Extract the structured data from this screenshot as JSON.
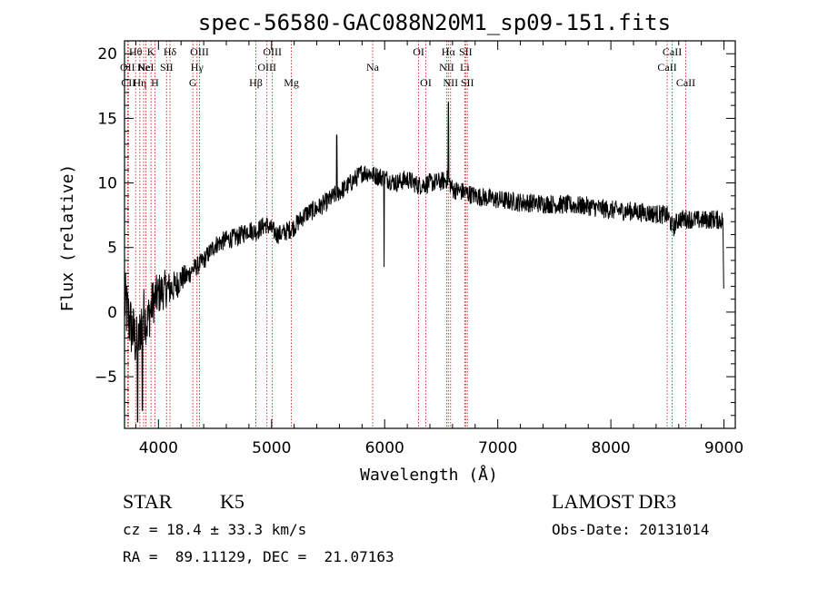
{
  "chart_data": {
    "type": "line",
    "title": "spec-56580-GAC088N20M1_sp09-151.fits",
    "xlabel": "Wavelength (Å)",
    "ylabel": "Flux (relative)",
    "xlim": [
      3700,
      9100
    ],
    "ylim": [
      -9,
      21
    ],
    "xticks": [
      4000,
      5000,
      6000,
      7000,
      8000,
      9000
    ],
    "xtick_labels": [
      "4000",
      "5000",
      "6000",
      "7000",
      "8000",
      "9000"
    ],
    "yticks": [
      -5,
      0,
      5,
      10,
      15,
      20
    ],
    "ytick_labels": [
      "−5",
      "0",
      "5",
      "10",
      "15",
      "20"
    ],
    "spectrum_trend": {
      "x": [
        3700,
        3760,
        3820,
        3860,
        3900,
        3950,
        4000,
        4060,
        4100,
        4150,
        4200,
        4260,
        4300,
        4350,
        4400,
        4500,
        4600,
        4700,
        4800,
        4860,
        4900,
        4950,
        5000,
        5050,
        5100,
        5200,
        5300,
        5400,
        5500,
        5580,
        5650,
        5700,
        5800,
        5860,
        5900,
        6000,
        6100,
        6200,
        6300,
        6400,
        6500,
        6560,
        6600,
        6700,
        6800,
        7000,
        7200,
        7400,
        7600,
        7800,
        8000,
        8200,
        8400,
        8500,
        8550,
        8600,
        8700,
        8800,
        8900,
        8990,
        9000
      ],
      "y": [
        0.8,
        -1.2,
        -2.8,
        0.2,
        -0.8,
        0.8,
        1.4,
        1.8,
        1.8,
        2.0,
        2.6,
        2.8,
        3.3,
        3.6,
        4.0,
        5.2,
        5.6,
        5.8,
        6.4,
        6.2,
        6.5,
        6.8,
        6.4,
        6.0,
        6.1,
        6.6,
        7.6,
        8.0,
        8.6,
        9.2,
        9.6,
        10.0,
        10.8,
        10.8,
        10.6,
        10.4,
        10.0,
        10.3,
        9.8,
        10.0,
        10.1,
        10.3,
        9.5,
        9.3,
        9.0,
        8.7,
        8.5,
        8.4,
        8.3,
        8.2,
        7.9,
        7.8,
        7.6,
        7.5,
        6.5,
        7.2,
        7.2,
        7.1,
        7.2,
        7.1,
        0.5
      ]
    },
    "spikes": [
      {
        "x": 5577,
        "y": 13.7
      },
      {
        "x": 5995,
        "y": 3.5
      },
      {
        "x": 6563,
        "y": 16.2
      },
      {
        "x": 3858,
        "y": -7.6
      },
      {
        "x": 3815,
        "y": -8.5
      }
    ],
    "noise_amplitude": 0.75,
    "blue_noise_amplitude": 2.6,
    "reference_lines": [
      {
        "wavelength": 3727,
        "tier": 1,
        "label": "OII"
      },
      {
        "wavelength": 3734,
        "tier": 2,
        "label": "CII"
      },
      {
        "wavelength": 3798,
        "tier": 0,
        "label": "Hθ"
      },
      {
        "wavelength": 3835,
        "tier": 2,
        "label": "Hη"
      },
      {
        "wavelength": 3869,
        "tier": 1,
        "label": "Ne"
      },
      {
        "wavelength": 3889,
        "tier": 1,
        "label": "HeI"
      },
      {
        "wavelength": 3934,
        "tier": 0,
        "label": "K"
      },
      {
        "wavelength": 3969,
        "tier": 2,
        "label": "H"
      },
      {
        "wavelength": 4072,
        "tier": 1,
        "label": "SII"
      },
      {
        "wavelength": 4102,
        "tier": 0,
        "label": "Hδ"
      },
      {
        "wavelength": 4304,
        "tier": 2,
        "label": "G"
      },
      {
        "wavelength": 4341,
        "tier": 1,
        "label": "Hγ"
      },
      {
        "wavelength": 4363,
        "tier": 0,
        "label": "OIII"
      },
      {
        "wavelength": 4861,
        "tier": 2,
        "label": "Hβ"
      },
      {
        "wavelength": 4959,
        "tier": 1,
        "label": "OIII"
      },
      {
        "wavelength": 5007,
        "tier": 0,
        "label": "OIII"
      },
      {
        "wavelength": 5175,
        "tier": 2,
        "label": "Mg"
      },
      {
        "wavelength": 5894,
        "tier": 1,
        "label": "Na"
      },
      {
        "wavelength": 6300,
        "tier": 0,
        "label": "OI"
      },
      {
        "wavelength": 6364,
        "tier": 2,
        "label": "OI"
      },
      {
        "wavelength": 6548,
        "tier": 1,
        "label": "NII"
      },
      {
        "wavelength": 6563,
        "tier": 0,
        "label": "Hα"
      },
      {
        "wavelength": 6583,
        "tier": 2,
        "label": "NII"
      },
      {
        "wavelength": 6708,
        "tier": 1,
        "label": "Li"
      },
      {
        "wavelength": 6716,
        "tier": 0,
        "label": "SII"
      },
      {
        "wavelength": 6731,
        "tier": 2,
        "label": "SII"
      },
      {
        "wavelength": 8498,
        "tier": 1,
        "label": "CaII"
      },
      {
        "wavelength": 8542,
        "tier": 0,
        "label": "CaII"
      },
      {
        "wavelength": 8662,
        "tier": 2,
        "label": "CaII"
      }
    ],
    "colors": {
      "axes": "#000000",
      "spectrum": "#000000",
      "reference_line": "#cc2222"
    }
  },
  "footer": {
    "class_label": "STAR",
    "subclass_label": "K5",
    "redshift_text": "cz = 18.4 ± 33.3 km/s",
    "coords_text": "RA =  89.11129, DEC =  21.07163",
    "survey_label": "LAMOST DR3",
    "obs_date_text": "Obs-Date: 20131014"
  }
}
